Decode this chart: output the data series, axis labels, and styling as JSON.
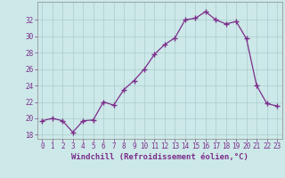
{
  "x": [
    0,
    1,
    2,
    3,
    4,
    5,
    6,
    7,
    8,
    9,
    10,
    11,
    12,
    13,
    14,
    15,
    16,
    17,
    18,
    19,
    20,
    21,
    22,
    23
  ],
  "y": [
    19.7,
    20.0,
    19.7,
    18.3,
    19.7,
    19.8,
    22.0,
    21.6,
    23.5,
    24.6,
    26.0,
    27.8,
    29.0,
    29.8,
    32.0,
    32.2,
    33.0,
    32.0,
    31.5,
    31.8,
    29.7,
    24.0,
    21.8,
    21.5
  ],
  "line_color": "#7b2d8b",
  "marker": "+",
  "marker_size": 4,
  "bg_color": "#cce8e8",
  "grid_color": "#aacece",
  "xlabel": "Windchill (Refroidissement éolien,°C)",
  "ylim": [
    17.5,
    34.2
  ],
  "yticks": [
    18,
    20,
    22,
    24,
    26,
    28,
    30,
    32
  ],
  "xlim": [
    -0.5,
    23.5
  ],
  "xticks": [
    0,
    1,
    2,
    3,
    4,
    5,
    6,
    7,
    8,
    9,
    10,
    11,
    12,
    13,
    14,
    15,
    16,
    17,
    18,
    19,
    20,
    21,
    22,
    23
  ],
  "tick_fontsize": 5.5,
  "label_fontsize": 6.5
}
